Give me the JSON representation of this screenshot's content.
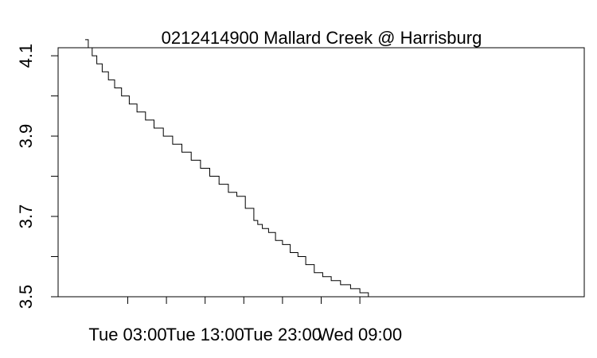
{
  "chart_data": {
    "type": "line",
    "title": "0212414900 Mallard Creek @ Harrisburg",
    "xlabel": "",
    "ylabel": "",
    "x_unit": "hours since Tue 00:00",
    "xlim": [
      -6,
      62
    ],
    "ylim": [
      3.5,
      4.12
    ],
    "x_ticks": [
      {
        "value": 3,
        "label": "Tue 03:00"
      },
      {
        "value": 13,
        "label": "Tue 13:00"
      },
      {
        "value": 23,
        "label": "Tue 23:00"
      },
      {
        "value": 33,
        "label": "Wed 09:00"
      }
    ],
    "x_minor_ticks": [
      8,
      18,
      28
    ],
    "y_ticks": [
      {
        "value": 3.5,
        "label": "3.5"
      },
      {
        "value": 3.7,
        "label": "3.7"
      },
      {
        "value": 3.9,
        "label": "3.9"
      },
      {
        "value": 4.1,
        "label": "4.1"
      }
    ],
    "y_minor_ticks": [
      3.6,
      3.8,
      4.0
    ],
    "grid": false,
    "series": [
      {
        "step": true,
        "x": [
          -2.5,
          -2.1,
          -1.6,
          -1.0,
          -0.3,
          0.5,
          1.3,
          2.2,
          3.2,
          4.2,
          5.3,
          6.4,
          7.6,
          8.8,
          10.0,
          11.2,
          12.4,
          13.6,
          14.8,
          16.0,
          17.1,
          18.2,
          19.3,
          19.8,
          20.4,
          21.2,
          22.1,
          23.0,
          24.0,
          25.0,
          26.0,
          27.1,
          28.2,
          29.3,
          30.5,
          31.8,
          33.0,
          34.1
        ],
        "y": [
          4.14,
          4.12,
          4.1,
          4.08,
          4.06,
          4.04,
          4.02,
          4.0,
          3.98,
          3.96,
          3.94,
          3.92,
          3.9,
          3.88,
          3.86,
          3.84,
          3.82,
          3.8,
          3.78,
          3.76,
          3.75,
          3.72,
          3.69,
          3.68,
          3.67,
          3.66,
          3.64,
          3.63,
          3.61,
          3.6,
          3.58,
          3.56,
          3.55,
          3.54,
          3.53,
          3.52,
          3.51,
          3.5
        ]
      }
    ]
  }
}
